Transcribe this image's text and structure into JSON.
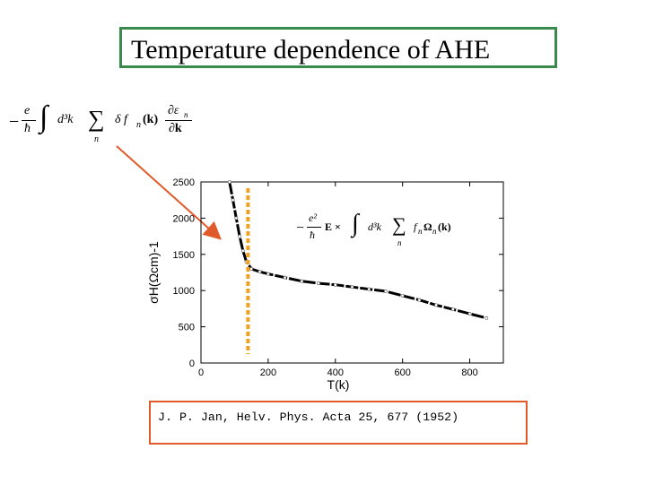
{
  "slide": {
    "title": "Temperature dependence of AHE",
    "citation": "J. P. Jan, Helv. Phys. Acta 25, 677 (1952)",
    "formula_top": {
      "prefix_num": "e",
      "prefix_den": "ħ",
      "integral": "∫",
      "d3k": "d³k",
      "sum": "∑",
      "sum_index": "n",
      "term": "δ f",
      "term_sub": "n",
      "arg": "(k)",
      "frac_num": "∂ε",
      "frac_num_sub": "n",
      "frac_den": "∂k"
    },
    "formula_inset": {
      "prefix_num": "e²",
      "prefix_den": "ħ",
      "E": "E ×",
      "integral": "∫",
      "d3k": "d³k",
      "sum": "∑",
      "sum_index": "n",
      "term": "f",
      "term_sub": "n",
      "omega": "Ω",
      "omega_sub": "n",
      "arg": "(k)"
    },
    "colors": {
      "title_border": "#3a8a4e",
      "citation_border": "#e05a2a",
      "arrow": "#e05a2a",
      "dashed_line": "#f0a020"
    }
  },
  "chart_data": {
    "type": "line",
    "xlabel": "T(k)",
    "ylabel": "σH(Ωcm)-1",
    "xlim": [
      0,
      900
    ],
    "ylim": [
      0,
      2500
    ],
    "x_ticks": [
      0,
      200,
      400,
      600,
      800
    ],
    "y_ticks": [
      0,
      500,
      1000,
      1500,
      2000,
      2500
    ],
    "grid": false,
    "series": [
      {
        "x": [
          85,
          95,
          105,
          115,
          125,
          135,
          150,
          175,
          200,
          250,
          300,
          350,
          400,
          450,
          500,
          550,
          600,
          650,
          700,
          750,
          800,
          850
        ],
        "y": [
          2500,
          2250,
          2000,
          1750,
          1550,
          1400,
          1300,
          1260,
          1230,
          1180,
          1130,
          1100,
          1080,
          1050,
          1020,
          990,
          930,
          870,
          800,
          740,
          680,
          620
        ]
      }
    ],
    "marker_line_x": 140
  }
}
